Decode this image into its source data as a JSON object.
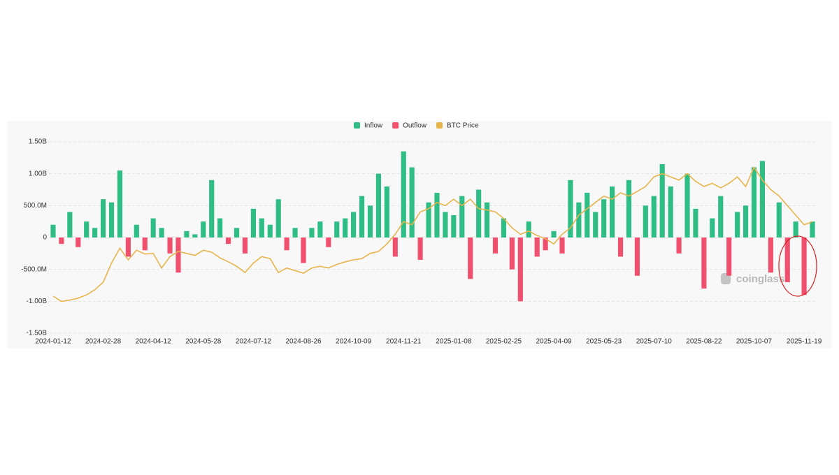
{
  "chart_data": {
    "type": "bar",
    "categories": [
      "2024-01-12",
      null,
      null,
      null,
      null,
      null,
      "2024-02-28",
      null,
      null,
      null,
      null,
      null,
      "2024-04-12",
      null,
      null,
      null,
      null,
      null,
      "2024-05-28",
      null,
      null,
      null,
      null,
      null,
      "2024-07-12",
      null,
      null,
      null,
      null,
      null,
      "2024-08-26",
      null,
      null,
      null,
      null,
      null,
      "2024-10-09",
      null,
      null,
      null,
      null,
      null,
      "2024-11-21",
      null,
      null,
      null,
      null,
      null,
      "2025-01-08",
      null,
      null,
      null,
      null,
      null,
      "2025-02-25",
      null,
      null,
      null,
      null,
      null,
      "2025-04-09",
      null,
      null,
      null,
      null,
      null,
      "2025-05-23",
      null,
      null,
      null,
      null,
      null,
      "2025-07-10",
      null,
      null,
      null,
      null,
      null,
      "2025-08-22",
      null,
      null,
      null,
      null,
      null,
      "2025-10-07",
      null,
      null,
      null,
      null,
      null,
      "2025-11-19",
      null
    ],
    "series": [
      {
        "name": "Inflow",
        "color": "#2ebd85",
        "values": [
          200,
          null,
          400,
          null,
          250,
          150,
          600,
          550,
          1050,
          null,
          200,
          null,
          300,
          150,
          null,
          null,
          100,
          50,
          250,
          900,
          300,
          null,
          150,
          null,
          450,
          300,
          200,
          600,
          null,
          150,
          null,
          150,
          250,
          null,
          250,
          300,
          400,
          650,
          500,
          1000,
          800,
          null,
          1350,
          1100,
          null,
          550,
          700,
          400,
          350,
          650,
          null,
          750,
          550,
          null,
          300,
          null,
          null,
          250,
          null,
          null,
          100,
          null,
          900,
          550,
          700,
          400,
          600,
          800,
          null,
          900,
          null,
          500,
          650,
          1150,
          800,
          null,
          1000,
          450,
          null,
          300,
          650,
          null,
          400,
          500,
          1100,
          1200,
          null,
          550,
          null,
          250,
          null,
          250
        ]
      },
      {
        "name": "Outflow",
        "color": "#f0506e",
        "values": [
          null,
          -100,
          null,
          -150,
          null,
          null,
          null,
          null,
          null,
          -300,
          null,
          -200,
          null,
          null,
          -250,
          -550,
          null,
          null,
          null,
          null,
          null,
          -100,
          null,
          -250,
          null,
          null,
          null,
          null,
          -200,
          null,
          -400,
          null,
          null,
          -150,
          null,
          null,
          null,
          null,
          null,
          null,
          null,
          -300,
          null,
          null,
          -350,
          null,
          null,
          null,
          null,
          null,
          -650,
          null,
          null,
          -250,
          null,
          -500,
          -1000,
          null,
          -300,
          -200,
          null,
          -250,
          null,
          null,
          null,
          null,
          null,
          null,
          -300,
          null,
          -600,
          null,
          null,
          null,
          null,
          -250,
          null,
          null,
          -800,
          null,
          null,
          -600,
          null,
          null,
          null,
          null,
          -550,
          null,
          -700,
          null,
          -900,
          null
        ]
      },
      {
        "name": "BTC Price",
        "color": "#e8b44c",
        "type": "line",
        "axis": "y2",
        "values": [
          44000,
          40800,
          41600,
          42800,
          44800,
          48000,
          52700,
          64600,
          73800,
          66600,
          72600,
          70200,
          70600,
          61500,
          68600,
          71800,
          70600,
          69400,
          72600,
          71400,
          67800,
          65400,
          62600,
          58700,
          64600,
          68600,
          67400,
          58700,
          61500,
          59900,
          58300,
          61500,
          62600,
          61500,
          63800,
          65400,
          66600,
          67400,
          70600,
          71800,
          76500,
          82500,
          90400,
          88400,
          96400,
          98400,
          102300,
          100300,
          104300,
          100300,
          104300,
          98400,
          97600,
          96400,
          92400,
          86500,
          82500,
          84500,
          81700,
          79700,
          76500,
          82500,
          86500,
          94400,
          98400,
          102300,
          106300,
          104300,
          108300,
          106300,
          109100,
          112200,
          118200,
          120200,
          118200,
          116200,
          120200,
          115400,
          112200,
          114200,
          111400,
          114200,
          118200,
          112200,
          124100,
          116200,
          110300,
          106300,
          100300,
          94400,
          88400,
          90400
        ]
      }
    ],
    "ylim": [
      -1500,
      1500
    ],
    "yticks": [
      {
        "value": 1500,
        "label": "1.50B"
      },
      {
        "value": 1000,
        "label": "1.00B"
      },
      {
        "value": 500,
        "label": "500.0M"
      },
      0,
      {
        "value": -500,
        "label": "-500.0M"
      },
      {
        "value": -1000,
        "label": "-1.00B"
      },
      {
        "value": -1500,
        "label": "-1.50B"
      }
    ],
    "y2lim": [
      21000,
      140000
    ],
    "grid": true,
    "legend": "top",
    "watermark": "coinglass"
  }
}
